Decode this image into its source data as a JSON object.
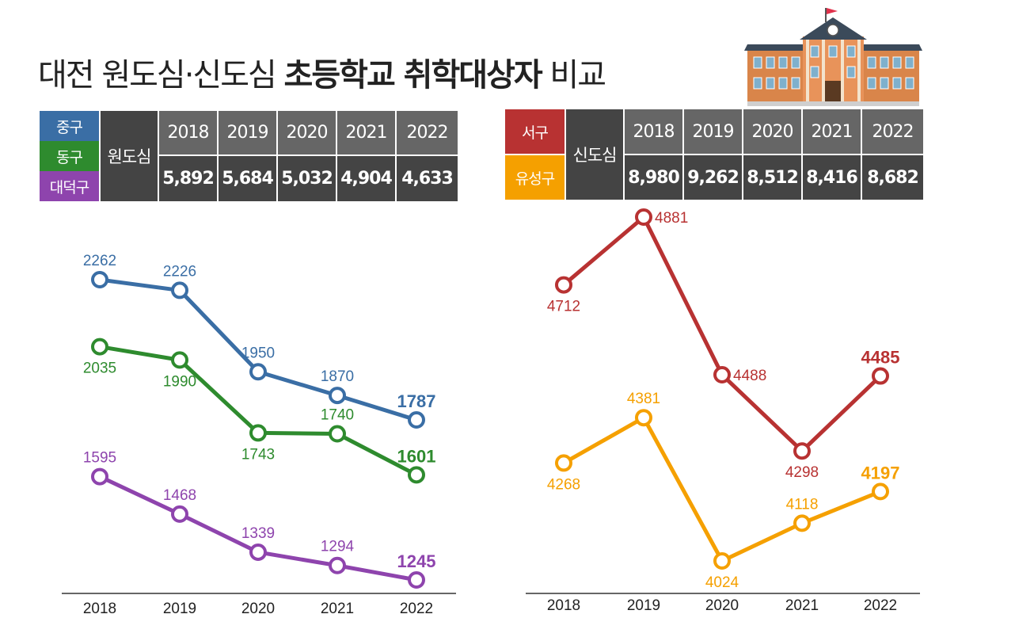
{
  "title": {
    "part1": "대전 원도심·신도심 ",
    "bold": "초등학교 취학대상자",
    "part2": " 비교"
  },
  "tables": {
    "left": {
      "group_label": "원도심",
      "regions": [
        {
          "name": "중구",
          "color": "#3a6ea5"
        },
        {
          "name": "동구",
          "color": "#2e8b2e"
        },
        {
          "name": "대덕구",
          "color": "#8e44ad"
        }
      ],
      "years": [
        "2018",
        "2019",
        "2020",
        "2021",
        "2022"
      ],
      "totals": [
        "5,892",
        "5,684",
        "5,032",
        "4,904",
        "4,633"
      ]
    },
    "right": {
      "group_label": "신도심",
      "regions": [
        {
          "name": "서구",
          "color": "#b83232"
        },
        {
          "name": "유성구",
          "color": "#f5a000"
        }
      ],
      "years": [
        "2018",
        "2019",
        "2020",
        "2021",
        "2022"
      ],
      "totals": [
        "8,980",
        "9,262",
        "8,512",
        "8,416",
        "8,682"
      ]
    }
  },
  "chart_data": [
    {
      "type": "line",
      "title": "원도심",
      "categories": [
        "2018",
        "2019",
        "2020",
        "2021",
        "2022"
      ],
      "series": [
        {
          "name": "중구",
          "color": "#3a6ea5",
          "values": [
            2262,
            2226,
            1950,
            1870,
            1787
          ],
          "label_pos": [
            "above",
            "above",
            "above",
            "above",
            "above"
          ]
        },
        {
          "name": "동구",
          "color": "#2e8b2e",
          "values": [
            2035,
            1990,
            1743,
            1740,
            1601
          ],
          "label_pos": [
            "below",
            "below",
            "below",
            "above",
            "above"
          ]
        },
        {
          "name": "대덕구",
          "color": "#8e44ad",
          "values": [
            1595,
            1468,
            1339,
            1294,
            1245
          ],
          "label_pos": [
            "above",
            "above",
            "above",
            "above",
            "above"
          ]
        }
      ]
    },
    {
      "type": "line",
      "title": "신도심",
      "categories": [
        "2018",
        "2019",
        "2020",
        "2021",
        "2022"
      ],
      "series": [
        {
          "name": "서구",
          "color": "#b83232",
          "values": [
            4712,
            4881,
            4488,
            4298,
            4485
          ],
          "label_pos": [
            "below",
            "right",
            "right",
            "below",
            "above"
          ]
        },
        {
          "name": "유성구",
          "color": "#f5a000",
          "values": [
            4268,
            4381,
            4024,
            4118,
            4197
          ],
          "label_pos": [
            "below",
            "above",
            "below",
            "above",
            "above"
          ]
        }
      ]
    }
  ]
}
